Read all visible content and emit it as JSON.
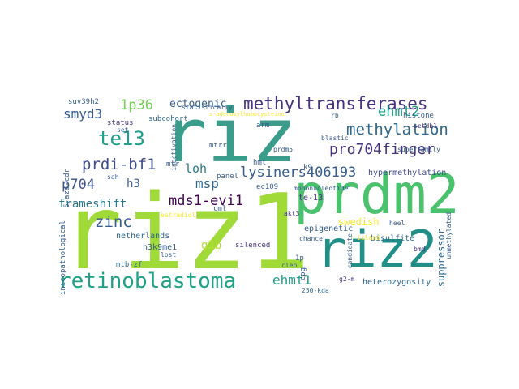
{
  "words": {
    "riz1": "riz1",
    "riz": "riz",
    "prdm2": "prdm2",
    "riz2": "riz2",
    "retinoblastoma": "retinoblastoma",
    "methyltransferases": "methyltransferases",
    "te13": "te13",
    "methylation": "methylation",
    "pro704finger": "pro704finger",
    "lysiners406193": "lysiners406193",
    "prdi_bf1": "prdi-bf1",
    "mds1_evi1": "mds1-evi1",
    "ehmt2": "ehmt2",
    "ehmt1": "ehmt1",
    "p36": "1p36",
    "smyd3": "smyd3",
    "ectogenic": "ectogenic",
    "frameshift": "frameshift",
    "p704": "p704",
    "zinc": "zinc",
    "msp": "msp",
    "loh": "loh",
    "h3": "h3",
    "g3b": "g3b",
    "epigenetic": "epigenetic",
    "bisulfite": "bisulfite",
    "swedish": "swedish",
    "heterozygosity": "heterozygosity",
    "suppressor": "suppressor",
    "histone": "histone",
    "hypermethylation": "hypermethylation",
    "netherlands": "netherlands",
    "h3k9me1": "h3k9me1",
    "mtb_zf": "mtb-zf",
    "clinicopathological": "clinicopathological",
    "aza": "5-aza-cdr",
    "suv39h2": "suv39h2",
    "adenosylhomocysteine": "s-adenosylhomocysteine",
    "subcohort": "subcohort",
    "inactivation": "inactivation",
    "status": "status",
    "te13b": "te-13",
    "mtrr": "mtrr",
    "mtr": "mtr",
    "hmt": "hmt",
    "prdm5": "prdm5",
    "panel": "panel",
    "ec109": "ec109",
    "silenced": "silenced",
    "akt3": "akt3",
    "estradiol": "estradiol",
    "cml": "cml",
    "p1": "1p",
    "bmd": "bmd",
    "g2m": "g2-m",
    "kda": "250-kda",
    "cpg": "cpg",
    "candidate": "candidate",
    "chance": "chance",
    "rb": "rb",
    "arm": "arm",
    "set": "set",
    "sah": "sah",
    "k9": "k9",
    "mononucleotide": "mononucleotide",
    "blastic": "blastic",
    "setdb1": "setdb1",
    "superfamily": "superfamily",
    "heel": "heel",
    "island": "island",
    "unmethylated": "unmethylated",
    "lost": "lost",
    "statistically": "statistically",
    "clep": "clep"
  },
  "colors": {
    "bg": "#ffffff",
    "yellowgreen": "#a0da39",
    "green": "#4ac16d",
    "teal": "#1fa187",
    "tealblue": "#277f8e",
    "blue": "#365c8d",
    "indigo": "#46327e",
    "purple": "#440154",
    "yellow": "#fde725"
  }
}
